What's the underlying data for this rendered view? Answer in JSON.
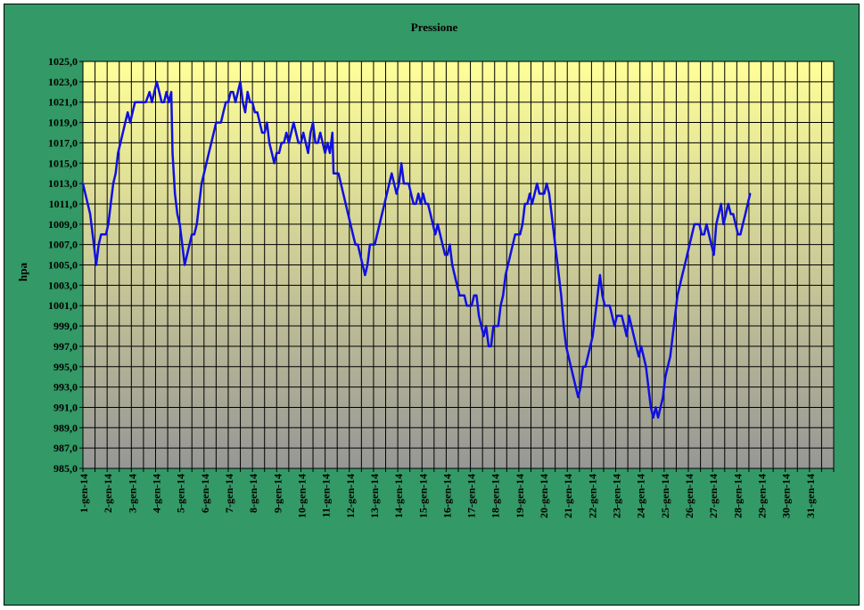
{
  "chart_data": {
    "type": "line",
    "title": "Pressione",
    "xlabel": "",
    "ylabel": "hpa",
    "ylim": [
      985.0,
      1025.0
    ],
    "yticks": [
      "985,0",
      "987,0",
      "989,0",
      "991,0",
      "993,0",
      "995,0",
      "997,0",
      "999,0",
      "1001,0",
      "1003,0",
      "1005,0",
      "1007,0",
      "1009,0",
      "1011,0",
      "1013,0",
      "1015,0",
      "1017,0",
      "1019,0",
      "1021,0",
      "1023,0",
      "1025,0"
    ],
    "categories": [
      "1-gen-14",
      "2-gen-14",
      "3-gen-14",
      "4-gen-14",
      "5-gen-14",
      "6-gen-14",
      "7-gen-14",
      "8-gen-14",
      "9-gen-14",
      "10-gen-14",
      "11-gen-14",
      "12-gen-14",
      "13-gen-14",
      "14-gen-14",
      "15-gen-14",
      "16-gen-14",
      "17-gen-14",
      "18-gen-14",
      "19-gen-14",
      "20-gen-14",
      "21-gen-14",
      "22-gen-14",
      "23-gen-14",
      "24-gen-14",
      "25-gen-14",
      "26-gen-14",
      "27-gen-14",
      "28-gen-14",
      "29-gen-14",
      "30-gen-14",
      "31-gen-14"
    ],
    "grid": true,
    "legend": "none",
    "colors": {
      "line": "#1010e0",
      "plot_top": "#ffff99",
      "plot_bottom": "#969696",
      "background": "#339966",
      "grid": "#000000"
    },
    "series": [
      {
        "points": [
          [
            0.0,
            1013
          ],
          [
            0.1,
            1012
          ],
          [
            0.2,
            1011
          ],
          [
            0.3,
            1010
          ],
          [
            0.4,
            1008
          ],
          [
            0.5,
            1006
          ],
          [
            0.55,
            1005
          ],
          [
            0.65,
            1007
          ],
          [
            0.75,
            1008
          ],
          [
            0.85,
            1008
          ],
          [
            0.95,
            1008
          ],
          [
            1.05,
            1009
          ],
          [
            1.15,
            1011
          ],
          [
            1.25,
            1013
          ],
          [
            1.35,
            1014
          ],
          [
            1.45,
            1016
          ],
          [
            1.55,
            1017
          ],
          [
            1.65,
            1018
          ],
          [
            1.75,
            1019
          ],
          [
            1.85,
            1020
          ],
          [
            1.95,
            1019
          ],
          [
            2.05,
            1020
          ],
          [
            2.15,
            1021
          ],
          [
            2.3,
            1021
          ],
          [
            2.45,
            1021
          ],
          [
            2.6,
            1021
          ],
          [
            2.75,
            1022
          ],
          [
            2.85,
            1021
          ],
          [
            2.95,
            1022
          ],
          [
            3.05,
            1023
          ],
          [
            3.15,
            1022
          ],
          [
            3.25,
            1021
          ],
          [
            3.35,
            1021
          ],
          [
            3.45,
            1022
          ],
          [
            3.55,
            1021
          ],
          [
            3.65,
            1022
          ],
          [
            3.7,
            1016
          ],
          [
            3.8,
            1012
          ],
          [
            3.9,
            1010
          ],
          [
            4.0,
            1009
          ],
          [
            4.1,
            1007
          ],
          [
            4.2,
            1005
          ],
          [
            4.3,
            1006
          ],
          [
            4.4,
            1007
          ],
          [
            4.5,
            1008
          ],
          [
            4.6,
            1008
          ],
          [
            4.7,
            1009
          ],
          [
            4.8,
            1011
          ],
          [
            4.9,
            1013
          ],
          [
            5.0,
            1014
          ],
          [
            5.1,
            1015
          ],
          [
            5.2,
            1016
          ],
          [
            5.3,
            1017
          ],
          [
            5.4,
            1018
          ],
          [
            5.5,
            1019
          ],
          [
            5.6,
            1019
          ],
          [
            5.7,
            1019
          ],
          [
            5.8,
            1020
          ],
          [
            5.9,
            1021
          ],
          [
            6.0,
            1021
          ],
          [
            6.1,
            1022
          ],
          [
            6.2,
            1022
          ],
          [
            6.3,
            1021
          ],
          [
            6.4,
            1022
          ],
          [
            6.5,
            1023
          ],
          [
            6.6,
            1021
          ],
          [
            6.7,
            1020
          ],
          [
            6.8,
            1022
          ],
          [
            6.9,
            1021
          ],
          [
            7.0,
            1021
          ],
          [
            7.1,
            1020
          ],
          [
            7.2,
            1020
          ],
          [
            7.3,
            1019
          ],
          [
            7.4,
            1018
          ],
          [
            7.5,
            1018
          ],
          [
            7.6,
            1019
          ],
          [
            7.7,
            1017
          ],
          [
            7.8,
            1016
          ],
          [
            7.9,
            1015
          ],
          [
            8.0,
            1016
          ],
          [
            8.1,
            1016
          ],
          [
            8.2,
            1017
          ],
          [
            8.3,
            1017
          ],
          [
            8.4,
            1018
          ],
          [
            8.5,
            1017
          ],
          [
            8.6,
            1018
          ],
          [
            8.7,
            1019
          ],
          [
            8.8,
            1018
          ],
          [
            8.9,
            1017
          ],
          [
            9.0,
            1017
          ],
          [
            9.1,
            1018
          ],
          [
            9.2,
            1017
          ],
          [
            9.3,
            1016
          ],
          [
            9.4,
            1018
          ],
          [
            9.5,
            1019
          ],
          [
            9.6,
            1017
          ],
          [
            9.7,
            1017
          ],
          [
            9.8,
            1018
          ],
          [
            9.9,
            1017
          ],
          [
            10.0,
            1016
          ],
          [
            10.1,
            1017
          ],
          [
            10.2,
            1016
          ],
          [
            10.3,
            1018
          ],
          [
            10.35,
            1014
          ],
          [
            10.45,
            1014
          ],
          [
            10.55,
            1014
          ],
          [
            10.65,
            1013
          ],
          [
            10.75,
            1012
          ],
          [
            10.85,
            1011
          ],
          [
            10.95,
            1010
          ],
          [
            11.05,
            1009
          ],
          [
            11.15,
            1008
          ],
          [
            11.25,
            1007
          ],
          [
            11.35,
            1007
          ],
          [
            11.45,
            1006
          ],
          [
            11.55,
            1005
          ],
          [
            11.65,
            1004
          ],
          [
            11.75,
            1005
          ],
          [
            11.85,
            1007
          ],
          [
            11.95,
            1007
          ],
          [
            12.05,
            1007
          ],
          [
            12.15,
            1008
          ],
          [
            12.25,
            1009
          ],
          [
            12.35,
            1010
          ],
          [
            12.45,
            1011
          ],
          [
            12.55,
            1012
          ],
          [
            12.65,
            1013
          ],
          [
            12.75,
            1014
          ],
          [
            12.85,
            1013
          ],
          [
            12.95,
            1012
          ],
          [
            13.05,
            1013
          ],
          [
            13.15,
            1015
          ],
          [
            13.25,
            1013
          ],
          [
            13.35,
            1013
          ],
          [
            13.45,
            1013
          ],
          [
            13.55,
            1012
          ],
          [
            13.65,
            1011
          ],
          [
            13.75,
            1011
          ],
          [
            13.85,
            1012
          ],
          [
            13.95,
            1011
          ],
          [
            14.05,
            1012
          ],
          [
            14.15,
            1011
          ],
          [
            14.25,
            1011
          ],
          [
            14.35,
            1010
          ],
          [
            14.45,
            1009
          ],
          [
            14.55,
            1008
          ],
          [
            14.65,
            1009
          ],
          [
            14.75,
            1008
          ],
          [
            14.85,
            1007
          ],
          [
            14.95,
            1006
          ],
          [
            15.05,
            1006
          ],
          [
            15.15,
            1007
          ],
          [
            15.25,
            1005
          ],
          [
            15.35,
            1004
          ],
          [
            15.45,
            1003
          ],
          [
            15.55,
            1002
          ],
          [
            15.65,
            1002
          ],
          [
            15.75,
            1002
          ],
          [
            15.85,
            1001
          ],
          [
            15.95,
            1001
          ],
          [
            16.05,
            1001
          ],
          [
            16.15,
            1002
          ],
          [
            16.25,
            1002
          ],
          [
            16.35,
            1000
          ],
          [
            16.45,
            999
          ],
          [
            16.55,
            998
          ],
          [
            16.65,
            999
          ],
          [
            16.75,
            997
          ],
          [
            16.85,
            997
          ],
          [
            16.95,
            999
          ],
          [
            17.05,
            999
          ],
          [
            17.15,
            999
          ],
          [
            17.25,
            1001
          ],
          [
            17.35,
            1002
          ],
          [
            17.45,
            1004
          ],
          [
            17.55,
            1005
          ],
          [
            17.65,
            1006
          ],
          [
            17.75,
            1007
          ],
          [
            17.85,
            1008
          ],
          [
            17.95,
            1008
          ],
          [
            18.05,
            1008
          ],
          [
            18.15,
            1009
          ],
          [
            18.25,
            1011
          ],
          [
            18.35,
            1011
          ],
          [
            18.45,
            1012
          ],
          [
            18.55,
            1011
          ],
          [
            18.65,
            1012
          ],
          [
            18.75,
            1013
          ],
          [
            18.85,
            1012
          ],
          [
            18.95,
            1012
          ],
          [
            19.05,
            1012
          ],
          [
            19.15,
            1013
          ],
          [
            19.25,
            1012
          ],
          [
            19.35,
            1010
          ],
          [
            19.45,
            1008
          ],
          [
            19.55,
            1006
          ],
          [
            19.65,
            1004
          ],
          [
            19.75,
            1002
          ],
          [
            19.85,
            999
          ],
          [
            19.95,
            997
          ],
          [
            20.05,
            996
          ],
          [
            20.15,
            995
          ],
          [
            20.25,
            994
          ],
          [
            20.35,
            993
          ],
          [
            20.45,
            992
          ],
          [
            20.55,
            993
          ],
          [
            20.65,
            995
          ],
          [
            20.75,
            995
          ],
          [
            20.85,
            996
          ],
          [
            20.95,
            997
          ],
          [
            21.05,
            998
          ],
          [
            21.15,
            1000
          ],
          [
            21.25,
            1002
          ],
          [
            21.35,
            1004
          ],
          [
            21.45,
            1002
          ],
          [
            21.55,
            1001
          ],
          [
            21.65,
            1001
          ],
          [
            21.75,
            1001
          ],
          [
            21.85,
            1000
          ],
          [
            21.95,
            999
          ],
          [
            22.05,
            1000
          ],
          [
            22.15,
            1000
          ],
          [
            22.25,
            1000
          ],
          [
            22.35,
            999
          ],
          [
            22.45,
            998
          ],
          [
            22.55,
            1000
          ],
          [
            22.65,
            999
          ],
          [
            22.75,
            998
          ],
          [
            22.85,
            997
          ],
          [
            22.95,
            996
          ],
          [
            23.05,
            997
          ],
          [
            23.15,
            996
          ],
          [
            23.25,
            995
          ],
          [
            23.35,
            993
          ],
          [
            23.45,
            991
          ],
          [
            23.55,
            990
          ],
          [
            23.65,
            991
          ],
          [
            23.75,
            990
          ],
          [
            23.85,
            991
          ],
          [
            23.95,
            992
          ],
          [
            24.05,
            994
          ],
          [
            24.15,
            995
          ],
          [
            24.25,
            996
          ],
          [
            24.35,
            998
          ],
          [
            24.45,
            1000
          ],
          [
            24.55,
            1002
          ],
          [
            24.65,
            1003
          ],
          [
            24.75,
            1004
          ],
          [
            24.85,
            1005
          ],
          [
            24.95,
            1006
          ],
          [
            25.05,
            1007
          ],
          [
            25.15,
            1008
          ],
          [
            25.25,
            1009
          ],
          [
            25.35,
            1009
          ],
          [
            25.45,
            1009
          ],
          [
            25.55,
            1008
          ],
          [
            25.65,
            1008
          ],
          [
            25.75,
            1009
          ],
          [
            25.85,
            1008
          ],
          [
            25.95,
            1007
          ],
          [
            26.05,
            1006
          ],
          [
            26.15,
            1009
          ],
          [
            26.25,
            1010
          ],
          [
            26.35,
            1011
          ],
          [
            26.45,
            1009
          ],
          [
            26.55,
            1010
          ],
          [
            26.65,
            1011
          ],
          [
            26.75,
            1010
          ],
          [
            26.85,
            1010
          ],
          [
            26.95,
            1009
          ],
          [
            27.05,
            1008
          ],
          [
            27.15,
            1008
          ],
          [
            27.25,
            1009
          ],
          [
            27.35,
            1010
          ],
          [
            27.45,
            1011
          ],
          [
            27.55,
            1012
          ]
        ]
      }
    ]
  }
}
